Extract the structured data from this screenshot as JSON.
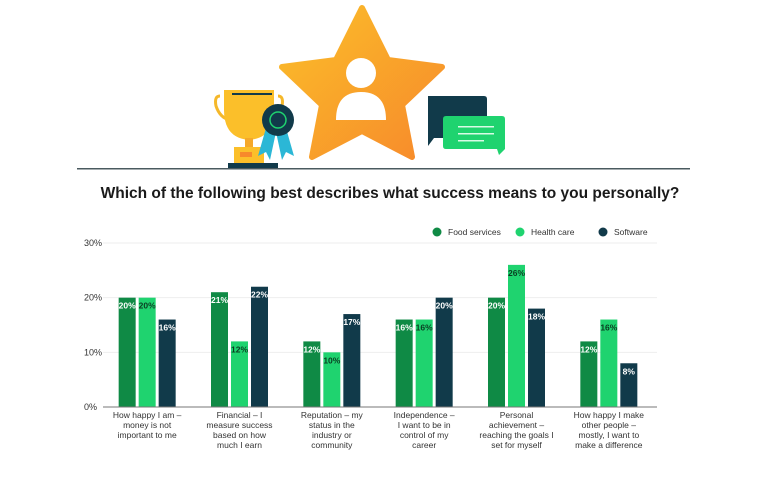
{
  "chart_data": {
    "type": "bar",
    "title": "Which of the following best describes what success means to you personally?",
    "xlabel": "",
    "ylabel": "",
    "ylim": [
      0,
      30
    ],
    "yticks": [
      "0%",
      "10%",
      "20%",
      "30%"
    ],
    "ytick_values": [
      0,
      10,
      20,
      30
    ],
    "grid": true,
    "legend_position": "top-right",
    "categories": [
      [
        "How happy I am –",
        "money is not",
        "important to me"
      ],
      [
        "Financial – I",
        "measure success",
        "based on how",
        "much I earn"
      ],
      [
        "Reputation – my",
        "status in the",
        "industry or",
        "community"
      ],
      [
        "Independence –",
        "I want to be in",
        "control of my",
        "career"
      ],
      [
        "Personal",
        "achievement –",
        "reaching the goals I",
        "set for myself"
      ],
      [
        "How happy I make",
        "other people –",
        "mostly, I want to",
        "make a difference"
      ]
    ],
    "series": [
      {
        "name": "Food services",
        "color": "#0f8a45",
        "label_color": "#ffffff",
        "values": [
          20,
          21,
          12,
          16,
          20,
          12
        ],
        "labels": [
          "20%",
          "21%",
          "12%",
          "16%",
          "20%",
          "12%"
        ]
      },
      {
        "name": "Health care",
        "color": "#1fd36f",
        "label_color": "#0a3d22",
        "values": [
          20,
          12,
          10,
          16,
          26,
          16
        ],
        "labels": [
          "20%",
          "12%",
          "10%",
          "16%",
          "26%",
          "16%"
        ]
      },
      {
        "name": "Software",
        "color": "#113a4a",
        "label_color": "#ffffff",
        "values": [
          16,
          22,
          17,
          20,
          18,
          8
        ],
        "labels": [
          "16%",
          "22%",
          "17%",
          "20%",
          "18%",
          "8%"
        ]
      }
    ]
  }
}
